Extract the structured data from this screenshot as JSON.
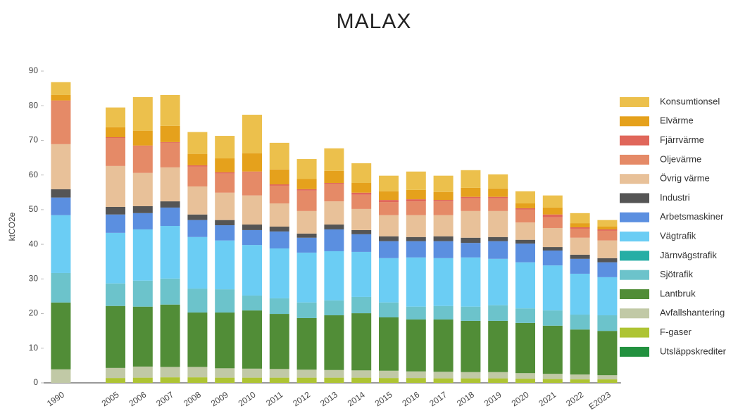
{
  "chart_data": {
    "type": "stacked-bar",
    "title": "MALAX",
    "y_label": "ktCO2e",
    "categories": [
      "1990",
      null,
      "2005",
      "2006",
      "2007",
      "2008",
      "2009",
      "2010",
      "2011",
      "2012",
      "2013",
      "2014",
      "2015",
      "2016",
      "2017",
      "2018",
      "2019",
      "2020",
      "2021",
      "2022",
      "E2023"
    ],
    "ylim": [
      0,
      90
    ],
    "yticks": [
      0,
      10,
      20,
      30,
      40,
      50,
      60,
      70,
      80,
      90
    ],
    "grid": false,
    "legend": "right",
    "series": [
      {
        "name": "Utsläppskrediter",
        "color": "#22913f",
        "values": [
          0,
          null,
          0,
          0,
          0,
          0,
          0,
          0,
          0,
          0,
          0,
          0,
          0,
          0,
          0,
          0,
          0,
          0,
          0,
          0,
          0
        ]
      },
      {
        "name": "F-gaser",
        "color": "#aec433",
        "values": [
          0,
          null,
          1.4,
          1.5,
          1.6,
          1.6,
          1.5,
          1.5,
          1.5,
          1.5,
          1.5,
          1.5,
          1.4,
          1.4,
          1.3,
          1.3,
          1.3,
          1.2,
          1.1,
          1.0,
          1.0
        ]
      },
      {
        "name": "Avfallshantering",
        "color": "#c1c9a6",
        "values": [
          3.9,
          null,
          2.9,
          3.2,
          3.0,
          3.0,
          2.7,
          2.6,
          2.5,
          2.3,
          2.2,
          2.1,
          2.1,
          1.9,
          1.9,
          1.8,
          1.8,
          1.6,
          1.5,
          1.4,
          1.2
        ]
      },
      {
        "name": "Lantbruk",
        "color": "#518d37",
        "values": [
          19.3,
          null,
          17.9,
          17.3,
          18.0,
          15.7,
          16.1,
          16.8,
          15.9,
          14.9,
          15.8,
          16.5,
          15.4,
          15.0,
          15.1,
          14.8,
          14.8,
          14.5,
          13.9,
          13.0,
          12.8
        ]
      },
      {
        "name": "Sjötrafik",
        "color": "#6cc3cb",
        "values": [
          8.5,
          null,
          6.5,
          7.5,
          7.5,
          6.9,
          6.7,
          4.3,
          4.5,
          4.5,
          4.3,
          4.7,
          4.3,
          3.7,
          3.9,
          4.1,
          4.5,
          4.2,
          4.4,
          4.3,
          4.5
        ]
      },
      {
        "name": "Järnvägstrafik",
        "color": "#26aea5",
        "values": [
          0,
          null,
          0,
          0,
          0,
          0,
          0,
          0,
          0,
          0,
          0,
          0,
          0,
          0,
          0,
          0,
          0,
          0,
          0,
          0,
          0
        ]
      },
      {
        "name": "Vägtrafik",
        "color": "#6bcdf4",
        "values": [
          16.7,
          null,
          14.6,
          14.8,
          15.2,
          14.9,
          14.1,
          14.6,
          14.4,
          14.4,
          14.2,
          13.0,
          12.8,
          14.2,
          13.8,
          14.2,
          13.4,
          13.3,
          13.0,
          11.8,
          11.0
        ]
      },
      {
        "name": "Arbetsmaskiner",
        "color": "#5b8fe0",
        "values": [
          5.1,
          null,
          5.3,
          4.7,
          5.3,
          4.9,
          4.4,
          4.3,
          4.9,
          4.3,
          6.3,
          5.1,
          4.9,
          4.7,
          4.9,
          4.2,
          5.1,
          5.4,
          4.3,
          4.3,
          4.3
        ]
      },
      {
        "name": "Industri",
        "color": "#555555",
        "values": [
          2.4,
          null,
          2.2,
          2.0,
          1.8,
          1.6,
          1.5,
          1.6,
          1.4,
          1.2,
          1.4,
          1.2,
          1.4,
          1.2,
          1.4,
          1.5,
          1.2,
          1.1,
          1.0,
          1.2,
          1.2
        ]
      },
      {
        "name": "Övrig värme",
        "color": "#e8c199",
        "values": [
          13.0,
          null,
          11.8,
          9.6,
          9.8,
          8.1,
          7.9,
          8.4,
          6.7,
          6.5,
          6.7,
          6.1,
          6.1,
          6.3,
          6.1,
          7.7,
          7.5,
          5.0,
          5.5,
          4.9,
          5.1
        ]
      },
      {
        "name": "Oljevärme",
        "color": "#e58a67",
        "values": [
          12.4,
          null,
          8.1,
          7.7,
          7.1,
          5.7,
          5.5,
          6.7,
          5.1,
          5.9,
          5.1,
          4.1,
          3.8,
          4.0,
          4.0,
          3.7,
          3.7,
          3.7,
          3.1,
          2.6,
          2.8
        ]
      },
      {
        "name": "Fjärrvärme",
        "color": "#e0665a",
        "values": [
          0.2,
          null,
          0.2,
          0.2,
          0.2,
          0.4,
          0.4,
          0.2,
          0.4,
          0.4,
          0.2,
          0.6,
          0.6,
          0.6,
          0.4,
          0.4,
          0.4,
          0.4,
          0.8,
          0.4,
          0.4
        ]
      },
      {
        "name": "Elvärme",
        "color": "#e5a11c",
        "values": [
          1.6,
          null,
          2.9,
          4.3,
          4.7,
          3.3,
          4.0,
          5.3,
          4.3,
          3.0,
          3.5,
          2.8,
          2.5,
          2.7,
          2.3,
          2.6,
          2.4,
          1.4,
          2.0,
          1.2,
          0.8
        ]
      },
      {
        "name": "Konsumtionsel",
        "color": "#ecc04c",
        "values": [
          3.7,
          null,
          5.7,
          9.7,
          8.9,
          6.3,
          6.5,
          11.1,
          7.7,
          5.7,
          6.5,
          5.7,
          4.5,
          5.3,
          4.7,
          5.1,
          4.1,
          3.5,
          3.5,
          2.9,
          1.9
        ]
      }
    ]
  }
}
